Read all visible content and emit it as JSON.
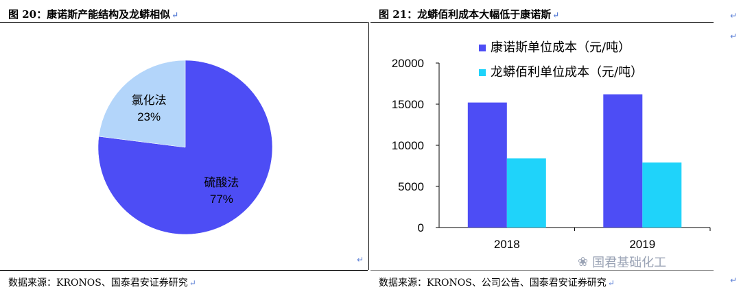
{
  "left": {
    "title": "图 20：康诺斯产能结构及龙蟒相似",
    "source": "数据来源：KRONOS、国泰君安证券研究"
  },
  "right": {
    "title": "图 21：龙蟒佰利成本大幅低于康诺斯",
    "source": "数据来源：KRONOS、公司公告、国泰君安证券研究"
  },
  "watermark": "国君基础化工",
  "chart_data": [
    {
      "type": "pie",
      "labels": [
        "硫酸法",
        "氯化法"
      ],
      "values": [
        77,
        23
      ],
      "value_labels": [
        "77%",
        "23%"
      ],
      "colors": [
        "#4d4df5",
        "#b3d5fa"
      ]
    },
    {
      "type": "bar",
      "categories": [
        "2018",
        "2019"
      ],
      "series": [
        {
          "name": "康诺斯单位成本（元/吨）",
          "values": [
            15200,
            16200
          ],
          "color": "#4d4df5"
        },
        {
          "name": "龙蟒佰利单位成本（元/吨）",
          "values": [
            8400,
            7900
          ],
          "color": "#1fd3fa"
        }
      ],
      "ylim": [
        0,
        20000
      ],
      "yticks": [
        "0",
        "5000",
        "10000",
        "15000",
        "20000"
      ],
      "legend": "top-right"
    }
  ]
}
